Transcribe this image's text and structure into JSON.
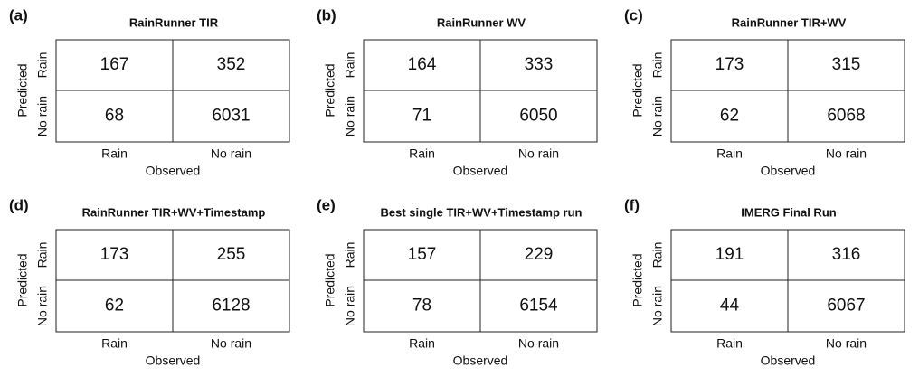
{
  "axes": {
    "y_label": "Predicted",
    "x_label": "Observed",
    "row_labels": [
      "Rain",
      "No rain"
    ],
    "col_labels": [
      "Rain",
      "No rain"
    ]
  },
  "panels": [
    {
      "label": "(a)",
      "title": "RainRunner TIR",
      "cells": [
        [
          "167",
          "352"
        ],
        [
          "68",
          "6031"
        ]
      ]
    },
    {
      "label": "(b)",
      "title": "RainRunner WV",
      "cells": [
        [
          "164",
          "333"
        ],
        [
          "71",
          "6050"
        ]
      ]
    },
    {
      "label": "(c)",
      "title": "RainRunner TIR+WV",
      "cells": [
        [
          "173",
          "315"
        ],
        [
          "62",
          "6068"
        ]
      ]
    },
    {
      "label": "(d)",
      "title": "RainRunner TIR+WV+Timestamp",
      "cells": [
        [
          "173",
          "255"
        ],
        [
          "62",
          "6128"
        ]
      ]
    },
    {
      "label": "(e)",
      "title": "Best single TIR+WV+Timestamp run",
      "cells": [
        [
          "157",
          "229"
        ],
        [
          "78",
          "6154"
        ]
      ]
    },
    {
      "label": "(f)",
      "title": "IMERG Final Run",
      "cells": [
        [
          "191",
          "316"
        ],
        [
          "44",
          "6067"
        ]
      ]
    }
  ]
}
